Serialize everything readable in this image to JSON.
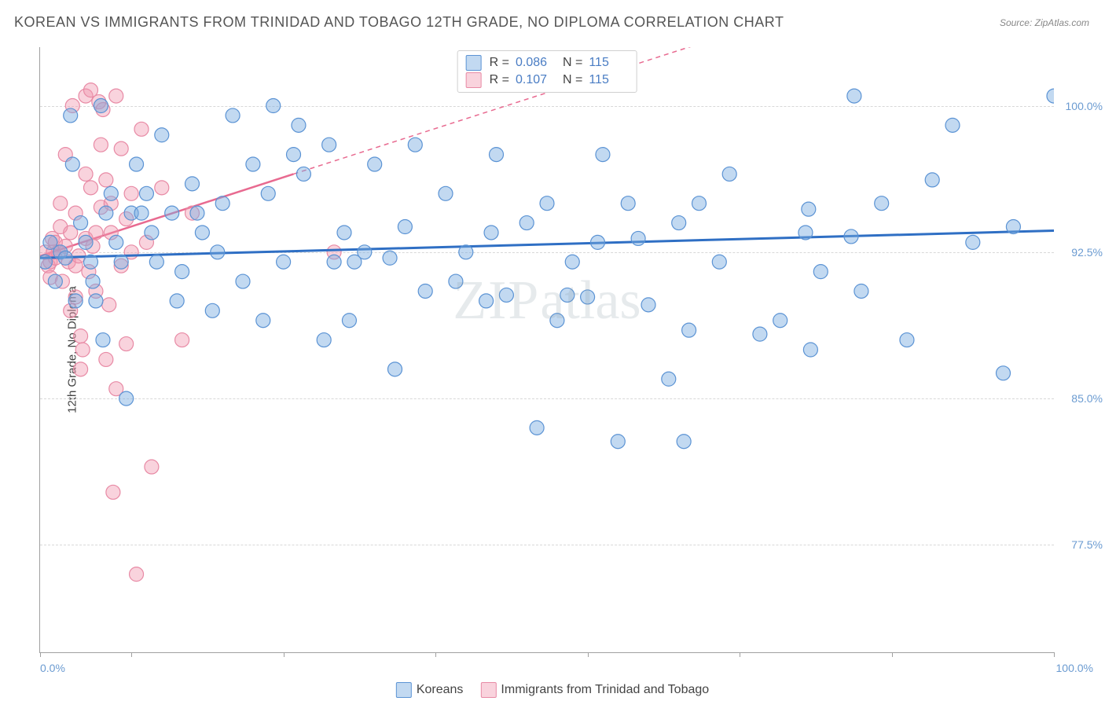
{
  "title": "KOREAN VS IMMIGRANTS FROM TRINIDAD AND TOBAGO 12TH GRADE, NO DIPLOMA CORRELATION CHART",
  "source_label": "Source:",
  "source_name": "ZipAtlas.com",
  "watermark": "ZIPatlas",
  "chart": {
    "type": "scatter",
    "yaxis_title": "12th Grade, No Diploma",
    "xlim": [
      0,
      100
    ],
    "ylim": [
      72,
      103
    ],
    "yticks": [
      77.5,
      85.0,
      92.5,
      100.0
    ],
    "ytick_labels": [
      "77.5%",
      "85.0%",
      "92.5%",
      "100.0%"
    ],
    "xtick_positions": [
      0,
      9,
      24,
      39,
      54,
      69,
      84,
      100
    ],
    "xaxis_start_label": "0.0%",
    "xaxis_end_label": "100.0%",
    "background_color": "#ffffff",
    "grid_color": "#d8d8d8",
    "series": [
      {
        "name": "Koreans",
        "color_fill": "rgba(120,170,225,0.45)",
        "color_stroke": "#5b93d4",
        "marker_radius": 9,
        "trend": {
          "x1": 0,
          "y1": 92.2,
          "x2": 100,
          "y2": 93.6,
          "color": "#2f6fc4",
          "width": 3,
          "dash": "none"
        },
        "r_value": "0.086",
        "n_value": "115",
        "points": [
          [
            0.5,
            92
          ],
          [
            1,
            93
          ],
          [
            1.5,
            91
          ],
          [
            2,
            92.5
          ],
          [
            2.5,
            92.2
          ],
          [
            3,
            99.5
          ],
          [
            3.2,
            97
          ],
          [
            3.5,
            90
          ],
          [
            4,
            94
          ],
          [
            4.5,
            93
          ],
          [
            5,
            92
          ],
          [
            5.2,
            91
          ],
          [
            5.5,
            90
          ],
          [
            6,
            100
          ],
          [
            6.2,
            88
          ],
          [
            6.5,
            94.5
          ],
          [
            7,
            95.5
          ],
          [
            7.5,
            93
          ],
          [
            8,
            92
          ],
          [
            8.5,
            85
          ],
          [
            9,
            94.5
          ],
          [
            9.5,
            97
          ],
          [
            10,
            94.5
          ],
          [
            10.5,
            95.5
          ],
          [
            11,
            93.5
          ],
          [
            11.5,
            92
          ],
          [
            12,
            98.5
          ],
          [
            13,
            94.5
          ],
          [
            13.5,
            90
          ],
          [
            14,
            91.5
          ],
          [
            15,
            96
          ],
          [
            15.5,
            94.5
          ],
          [
            16,
            93.5
          ],
          [
            17,
            89.5
          ],
          [
            17.5,
            92.5
          ],
          [
            18,
            95
          ],
          [
            19,
            99.5
          ],
          [
            20,
            91
          ],
          [
            21,
            97
          ],
          [
            22,
            89
          ],
          [
            22.5,
            95.5
          ],
          [
            23,
            100
          ],
          [
            24,
            92
          ],
          [
            25,
            97.5
          ],
          [
            25.5,
            99
          ],
          [
            26,
            96.5
          ],
          [
            28,
            88
          ],
          [
            28.5,
            98
          ],
          [
            29,
            92
          ],
          [
            30,
            93.5
          ],
          [
            30.5,
            89
          ],
          [
            31,
            92
          ],
          [
            32,
            92.5
          ],
          [
            33,
            97
          ],
          [
            34.5,
            92.2
          ],
          [
            35,
            86.5
          ],
          [
            36,
            93.8
          ],
          [
            37,
            98
          ],
          [
            38,
            90.5
          ],
          [
            40,
            95.5
          ],
          [
            41,
            91
          ],
          [
            42,
            92.5
          ],
          [
            44,
            90
          ],
          [
            44.5,
            93.5
          ],
          [
            45,
            97.5
          ],
          [
            46,
            90.3
          ],
          [
            48,
            94
          ],
          [
            49,
            83.5
          ],
          [
            50,
            95
          ],
          [
            51,
            89
          ],
          [
            52,
            90.3
          ],
          [
            52.5,
            92
          ],
          [
            54,
            90.2
          ],
          [
            55,
            93
          ],
          [
            55.5,
            97.5
          ],
          [
            57,
            82.8
          ],
          [
            58,
            95
          ],
          [
            59,
            93.2
          ],
          [
            60,
            89.8
          ],
          [
            62,
            86
          ],
          [
            63,
            94
          ],
          [
            63.5,
            82.8
          ],
          [
            64,
            88.5
          ],
          [
            65,
            95
          ],
          [
            67,
            92
          ],
          [
            68,
            96.5
          ],
          [
            71,
            88.3
          ],
          [
            73,
            89
          ],
          [
            75.5,
            93.5
          ],
          [
            75.8,
            94.7
          ],
          [
            76,
            87.5
          ],
          [
            77,
            91.5
          ],
          [
            80,
            93.3
          ],
          [
            80.3,
            100.5
          ],
          [
            81,
            90.5
          ],
          [
            83,
            95
          ],
          [
            85.5,
            88
          ],
          [
            88,
            96.2
          ],
          [
            90,
            99
          ],
          [
            92,
            93
          ],
          [
            95,
            86.3
          ],
          [
            96,
            93.8
          ],
          [
            100,
            100.5
          ]
        ]
      },
      {
        "name": "Immigrants from Trinidad and Tobago",
        "color_fill": "rgba(240,150,175,0.42)",
        "color_stroke": "#e88aa5",
        "marker_radius": 9,
        "trend": {
          "x1": 0,
          "y1": 92.3,
          "x2": 25,
          "y2": 96.5,
          "extend_x2": 100,
          "extend_y2": 109,
          "color": "#e86a90",
          "width": 2.5,
          "dash": "6,5"
        },
        "r_value": "0.107",
        "n_value": "115",
        "points": [
          [
            0.5,
            92.5
          ],
          [
            0.8,
            91.8
          ],
          [
            1,
            92
          ],
          [
            1,
            91.2
          ],
          [
            1.2,
            93.2
          ],
          [
            1.3,
            92.5
          ],
          [
            1.5,
            93
          ],
          [
            1.5,
            92.2
          ],
          [
            1.8,
            92.5
          ],
          [
            2,
            93.8
          ],
          [
            2,
            95
          ],
          [
            2.2,
            91
          ],
          [
            2.5,
            92.8
          ],
          [
            2.5,
            97.5
          ],
          [
            2.8,
            92
          ],
          [
            3,
            93.5
          ],
          [
            3,
            89.5
          ],
          [
            3.2,
            100
          ],
          [
            3.5,
            91.8
          ],
          [
            3.5,
            94.5
          ],
          [
            3.5,
            90.2
          ],
          [
            3.8,
            92.3
          ],
          [
            4,
            86.5
          ],
          [
            4,
            88.2
          ],
          [
            4.2,
            87.5
          ],
          [
            4.5,
            96.5
          ],
          [
            4.5,
            93.2
          ],
          [
            4.5,
            100.5
          ],
          [
            4.8,
            91.5
          ],
          [
            5,
            95.8
          ],
          [
            5,
            100.8
          ],
          [
            5.2,
            92.8
          ],
          [
            5.5,
            93.5
          ],
          [
            5.5,
            90.5
          ],
          [
            5.8,
            100.2
          ],
          [
            6,
            94.8
          ],
          [
            6,
            98
          ],
          [
            6.2,
            99.8
          ],
          [
            6.5,
            96.2
          ],
          [
            6.5,
            87
          ],
          [
            6.8,
            89.8
          ],
          [
            7,
            95
          ],
          [
            7,
            93.5
          ],
          [
            7.2,
            80.2
          ],
          [
            7.5,
            85.5
          ],
          [
            7.5,
            100.5
          ],
          [
            8,
            97.8
          ],
          [
            8,
            91.8
          ],
          [
            8.5,
            94.2
          ],
          [
            8.5,
            87.8
          ],
          [
            9,
            95.5
          ],
          [
            9,
            92.5
          ],
          [
            9.5,
            76
          ],
          [
            10,
            98.8
          ],
          [
            10.5,
            93
          ],
          [
            11,
            81.5
          ],
          [
            12,
            95.8
          ],
          [
            14,
            88
          ],
          [
            15,
            94.5
          ],
          [
            29,
            92.5
          ]
        ]
      }
    ],
    "legend_position": "top-center",
    "bottom_legend_labels": {
      "blue": "Koreans",
      "pink": "Immigrants from Trinidad and Tobago"
    }
  }
}
